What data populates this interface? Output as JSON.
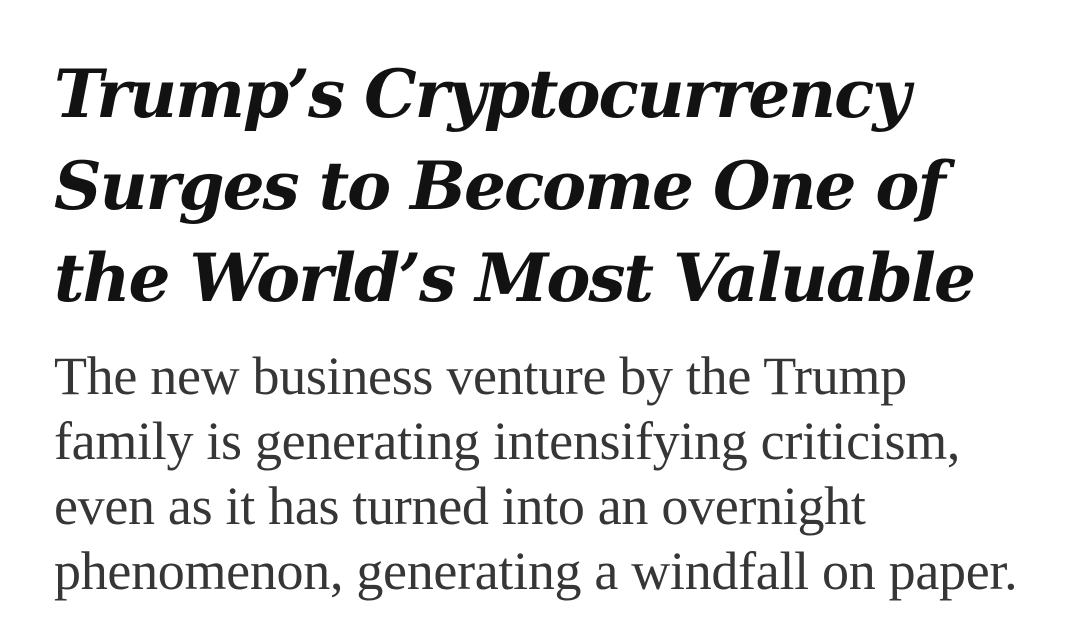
{
  "article": {
    "headline": "Trump’s Cryptocurrency Surges to Become One of the World’s Most Valuable",
    "summary": "The new business venture by the Trump family is generating intensifying criticism, even as it has turned into an overnight phenomenon, generating a windfall on paper."
  },
  "colors": {
    "background": "#ffffff",
    "headline": "#121212",
    "summary": "#363636"
  }
}
